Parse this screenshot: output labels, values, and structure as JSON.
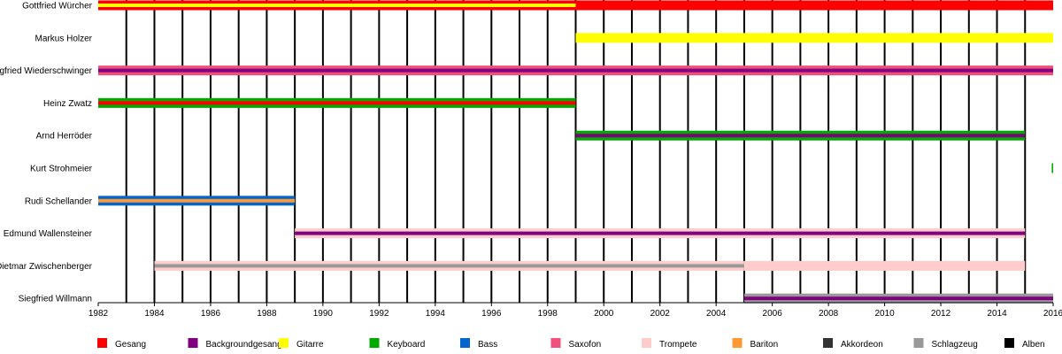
{
  "chart_data": {
    "type": "timeline",
    "title": "",
    "xlabel": "",
    "ylabel": "",
    "xlim": [
      1982,
      2016
    ],
    "grid": "vertical yearly lines (Alben)",
    "legend_position": "bottom",
    "tick_labels": [
      "1982",
      "1984",
      "1986",
      "1988",
      "1990",
      "1992",
      "1994",
      "1996",
      "1998",
      "2000",
      "2002",
      "2004",
      "2006",
      "2008",
      "2010",
      "2012",
      "2014",
      "2016"
    ],
    "roles": {
      "gesang": {
        "label": "Gesang",
        "color": "#ff0000"
      },
      "backgroundgesang": {
        "label": "Backgroundgesang",
        "color": "#800080"
      },
      "gitarre": {
        "label": "Gitarre",
        "color": "#ffff00"
      },
      "keyboard": {
        "label": "Keyboard",
        "color": "#00aa00"
      },
      "bass": {
        "label": "Bass",
        "color": "#0066cc"
      },
      "saxofon": {
        "label": "Saxofon",
        "color": "#f0507a"
      },
      "trompete": {
        "label": "Trompete",
        "color": "#ffcccc"
      },
      "bariton": {
        "label": "Bariton",
        "color": "#ff9933"
      },
      "akkordeon": {
        "label": "Akkordeon",
        "color": "#333333"
      },
      "schlagzeug": {
        "label": "Schlagzeug",
        "color": "#999999"
      },
      "alben": {
        "label": "Alben",
        "color": "#000000"
      }
    },
    "legend_order": [
      "gesang",
      "backgroundgesang",
      "gitarre",
      "keyboard",
      "bass",
      "saxofon",
      "trompete",
      "bariton",
      "akkordeon",
      "schlagzeug",
      "alben"
    ],
    "albums": [
      1983,
      1984,
      1985,
      1986,
      1987,
      1988,
      1989,
      1990,
      1991,
      1992,
      1993,
      1994,
      1995,
      1996,
      1997,
      1998,
      1999,
      2000,
      2001,
      2002,
      2003,
      2004,
      2005,
      2006,
      2007,
      2008,
      2009,
      2010,
      2011,
      2012,
      2013,
      2014,
      2015
    ],
    "members": [
      {
        "name": "Gottfried Würcher",
        "bars": [
          {
            "from": 1982,
            "to": 1999,
            "role": "gesang",
            "secondary": "gitarre"
          },
          {
            "from": 1999,
            "to": 2016,
            "role": "gesang"
          }
        ]
      },
      {
        "name": "Markus Holzer",
        "bars": [
          {
            "from": 1999,
            "to": 2016,
            "role": "gitarre"
          }
        ]
      },
      {
        "name": "Siegfried Wiederschwinger",
        "bars": [
          {
            "from": 1982,
            "to": 2016,
            "role": "saxofon",
            "secondary": "backgroundgesang"
          }
        ]
      },
      {
        "name": "Heinz Zwatz",
        "bars": [
          {
            "from": 1982,
            "to": 1999,
            "role": "keyboard",
            "secondary": "gesang"
          }
        ]
      },
      {
        "name": "Arnd Herröder",
        "bars": [
          {
            "from": 1999,
            "to": 2015,
            "role": "keyboard",
            "secondary": "backgroundgesang"
          }
        ]
      },
      {
        "name": "Kurt Strohmeier",
        "bars": [
          {
            "from": 2015.95,
            "to": 2016,
            "role": "keyboard"
          }
        ]
      },
      {
        "name": "Rudi Schellander",
        "bars": [
          {
            "from": 1982,
            "to": 1989,
            "role": "bass",
            "secondary": "bariton"
          }
        ]
      },
      {
        "name": "Edmund Wallensteiner",
        "bars": [
          {
            "from": 1989,
            "to": 2015,
            "role": "trompete",
            "secondary": "backgroundgesang"
          }
        ]
      },
      {
        "name": "Dietmar Zwischenberger",
        "bars": [
          {
            "from": 1984,
            "to": 2005,
            "role": "trompete",
            "secondary": "schlagzeug"
          },
          {
            "from": 2005,
            "to": 2015,
            "role": "trompete"
          }
        ]
      },
      {
        "name": "Siegfried Willmann",
        "bars": [
          {
            "from": 2005,
            "to": 2016,
            "role": "schlagzeug",
            "secondary": "backgroundgesang"
          }
        ]
      }
    ]
  }
}
